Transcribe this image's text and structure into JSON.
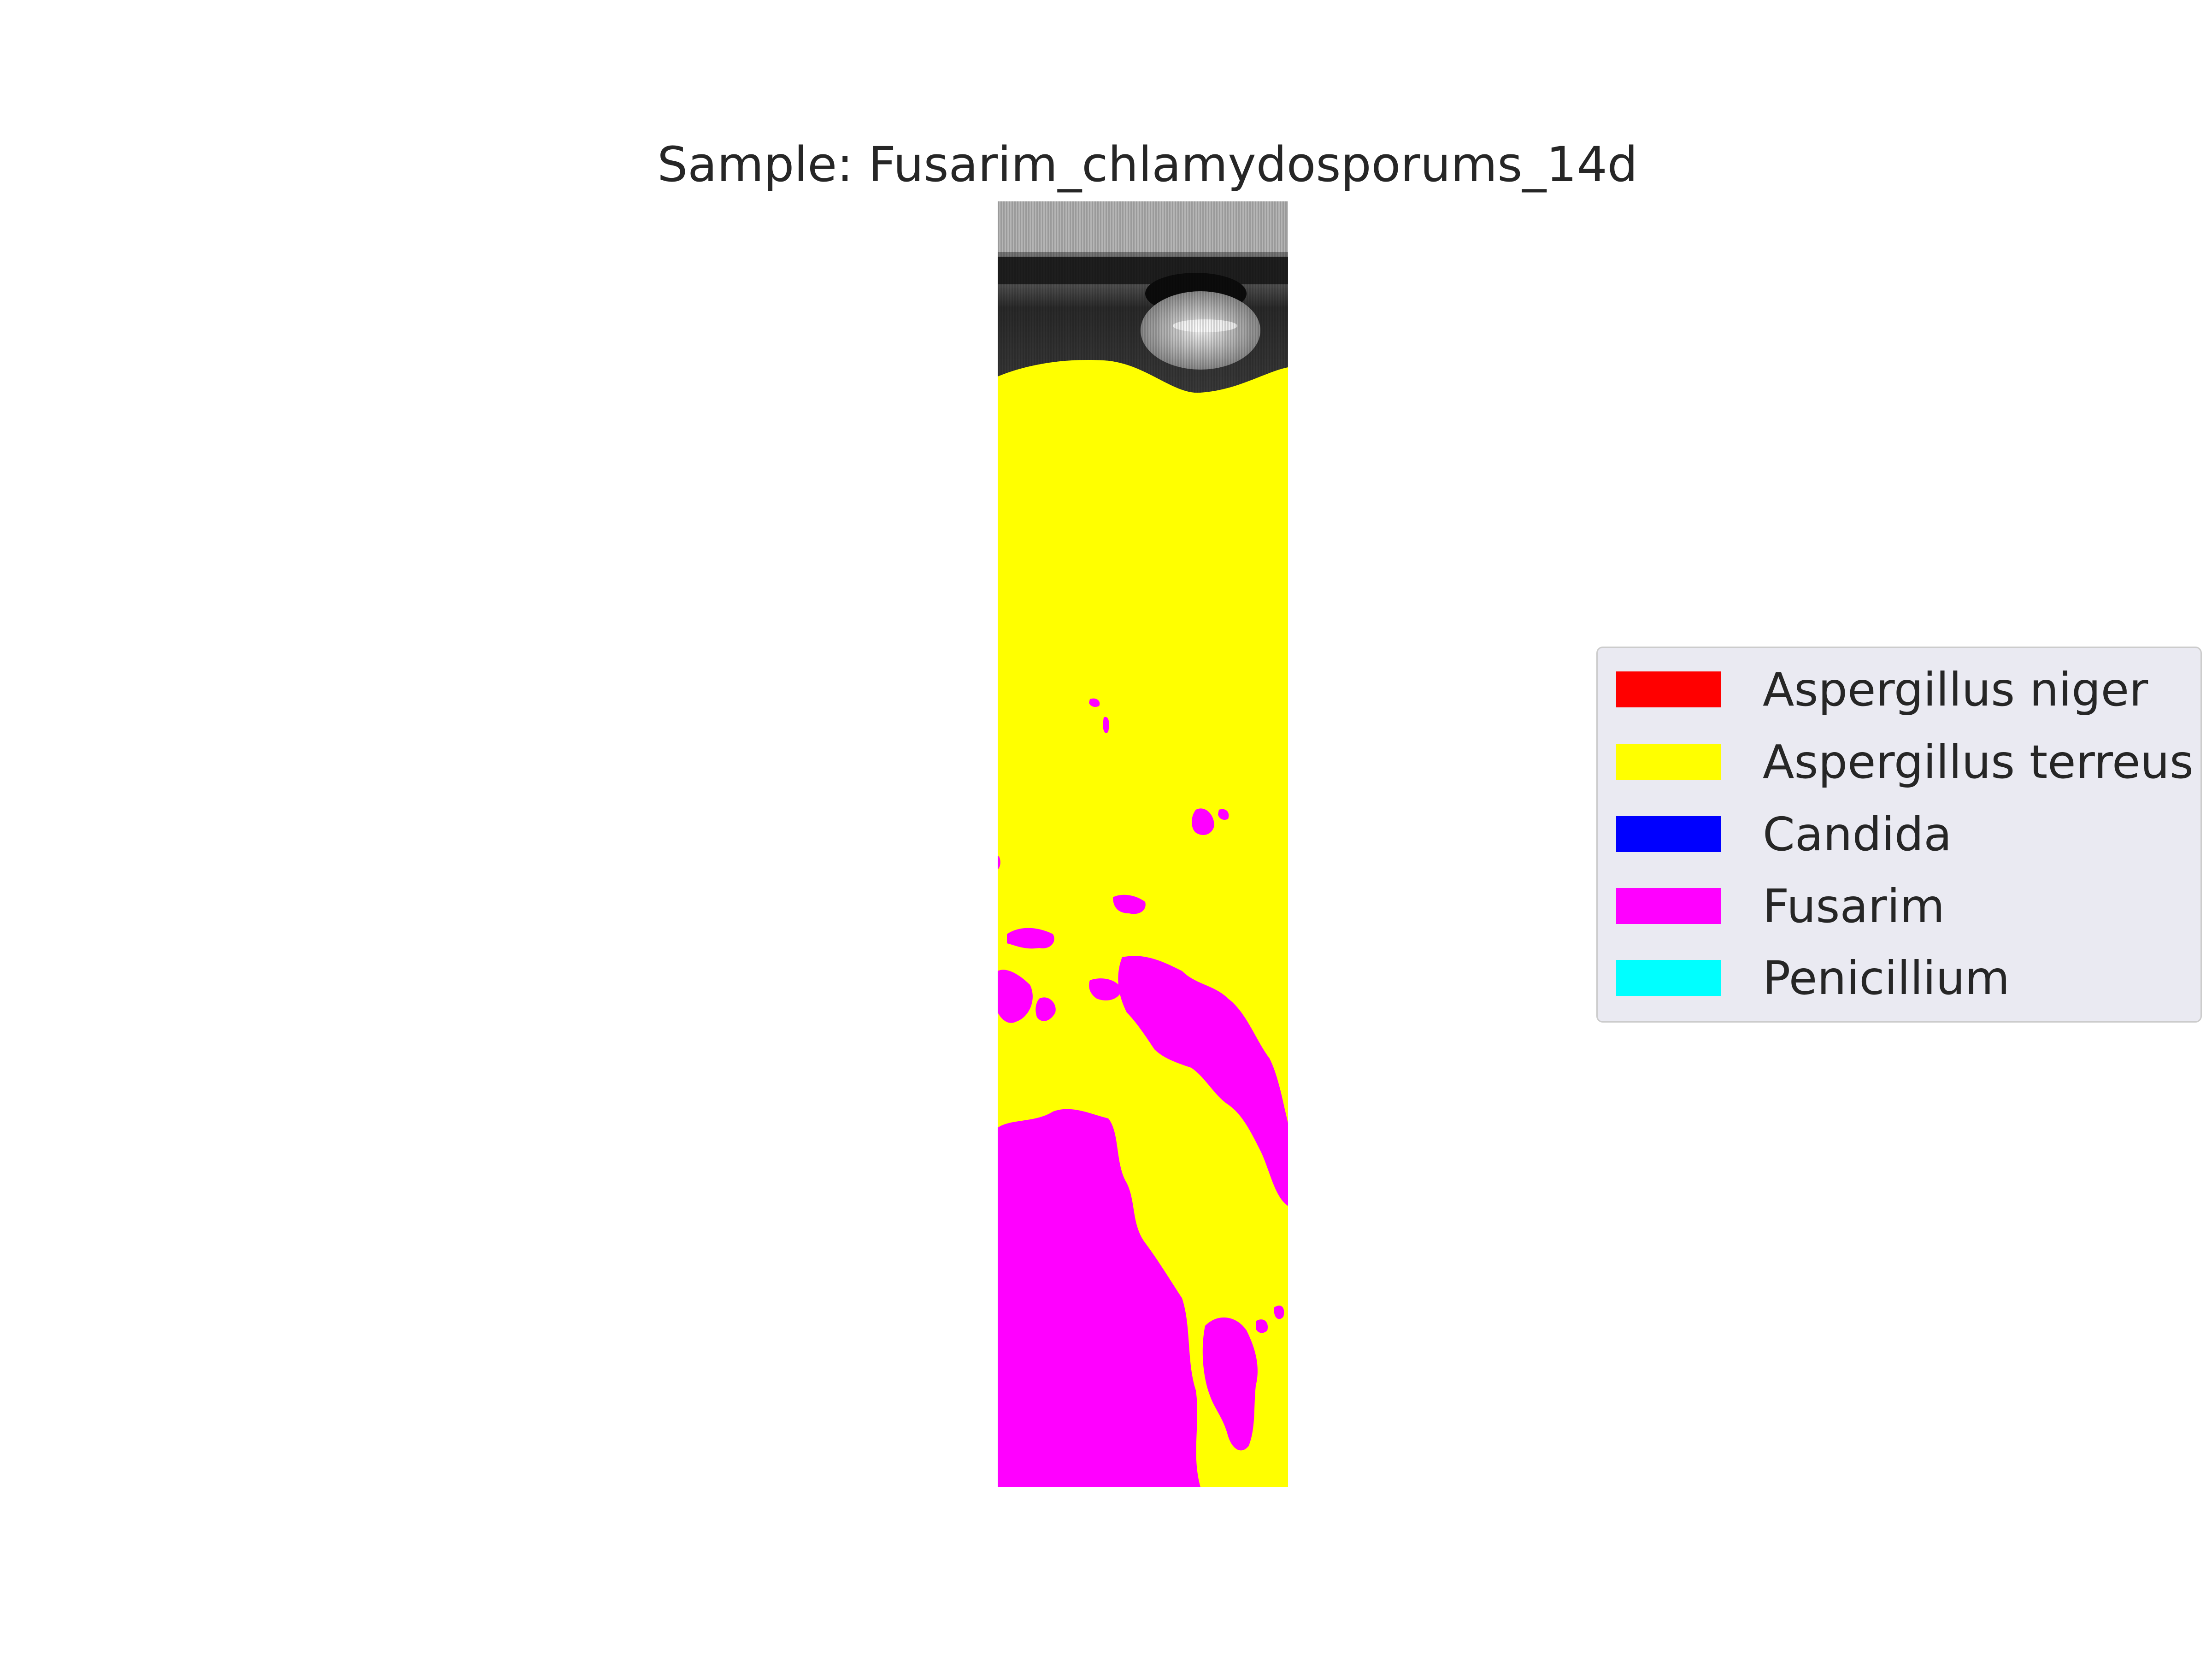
{
  "title": "Sample: Fusarim_chlamydosporums_14d",
  "legend": {
    "items": [
      {
        "label": "Aspergillus niger",
        "color": "#ff0000"
      },
      {
        "label": "Aspergillus terreus",
        "color": "#ffff00"
      },
      {
        "label": "Candida",
        "color": "#0000ff"
      },
      {
        "label": "Fusarim",
        "color": "#ff00ff"
      },
      {
        "label": "Penicillium",
        "color": "#00ffff"
      }
    ]
  }
}
